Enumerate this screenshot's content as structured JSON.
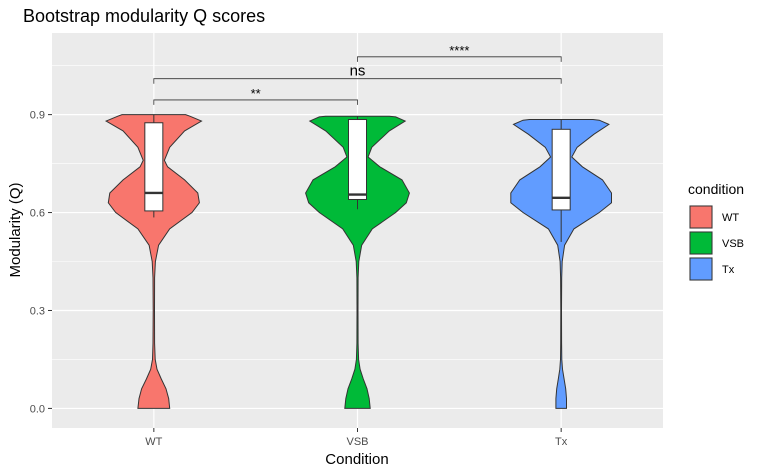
{
  "chart_data": {
    "type": "violin",
    "title": "Bootstrap modularity Q scores",
    "xlabel": "Condition",
    "ylabel": "Modularity (Q)",
    "categories": [
      "WT",
      "VSB",
      "Tx"
    ],
    "ylim": [
      -0.06,
      1.15
    ],
    "yticks": [
      0.0,
      0.3,
      0.6,
      0.9
    ],
    "ytick_labels": [
      "0.0",
      "0.3",
      "0.6",
      "0.9"
    ],
    "grid": true,
    "legend": {
      "title": "condition",
      "placement": "right",
      "entries": [
        {
          "label": "WT",
          "color": "#F8766D"
        },
        {
          "label": "VSB",
          "color": "#00BA38"
        },
        {
          "label": "Tx",
          "color": "#619CFF"
        }
      ]
    },
    "series": [
      {
        "category": "WT",
        "color": "#F8766D",
        "box": {
          "q1": 0.605,
          "median": 0.66,
          "q3": 0.875,
          "whisker_low": 0.585,
          "whisker_high": 0.9
        },
        "violin_profile": [
          [
            0.0,
            0.3
          ],
          [
            0.03,
            0.28
          ],
          [
            0.06,
            0.23
          ],
          [
            0.09,
            0.14
          ],
          [
            0.12,
            0.06
          ],
          [
            0.15,
            0.025
          ],
          [
            0.2,
            0.015
          ],
          [
            0.3,
            0.012
          ],
          [
            0.4,
            0.015
          ],
          [
            0.45,
            0.03
          ],
          [
            0.5,
            0.09
          ],
          [
            0.55,
            0.3
          ],
          [
            0.6,
            0.72
          ],
          [
            0.63,
            0.86
          ],
          [
            0.66,
            0.83
          ],
          [
            0.7,
            0.58
          ],
          [
            0.74,
            0.26
          ],
          [
            0.76,
            0.2
          ],
          [
            0.8,
            0.3
          ],
          [
            0.85,
            0.58
          ],
          [
            0.88,
            0.9
          ],
          [
            0.895,
            0.68
          ],
          [
            0.9,
            0.6
          ]
        ]
      },
      {
        "category": "VSB",
        "color": "#00BA38",
        "box": {
          "q1": 0.64,
          "median": 0.655,
          "q3": 0.885,
          "whisker_low": 0.61,
          "whisker_high": 0.895
        },
        "violin_profile": [
          [
            0.0,
            0.24
          ],
          [
            0.03,
            0.22
          ],
          [
            0.06,
            0.18
          ],
          [
            0.09,
            0.11
          ],
          [
            0.12,
            0.05
          ],
          [
            0.15,
            0.02
          ],
          [
            0.2,
            0.012
          ],
          [
            0.3,
            0.01
          ],
          [
            0.4,
            0.012
          ],
          [
            0.45,
            0.025
          ],
          [
            0.5,
            0.08
          ],
          [
            0.55,
            0.28
          ],
          [
            0.6,
            0.72
          ],
          [
            0.63,
            0.92
          ],
          [
            0.66,
            0.98
          ],
          [
            0.7,
            0.84
          ],
          [
            0.74,
            0.42
          ],
          [
            0.77,
            0.2
          ],
          [
            0.8,
            0.27
          ],
          [
            0.85,
            0.6
          ],
          [
            0.88,
            0.9
          ],
          [
            0.893,
            0.72
          ],
          [
            0.895,
            0.6
          ]
        ]
      },
      {
        "category": "Tx",
        "color": "#619CFF",
        "box": {
          "q1": 0.608,
          "median": 0.645,
          "q3": 0.855,
          "whisker_low": 0.51,
          "whisker_high": 0.885
        },
        "violin_profile": [
          [
            0.0,
            0.1
          ],
          [
            0.03,
            0.1
          ],
          [
            0.06,
            0.085
          ],
          [
            0.09,
            0.055
          ],
          [
            0.12,
            0.025
          ],
          [
            0.15,
            0.012
          ],
          [
            0.2,
            0.008
          ],
          [
            0.3,
            0.007
          ],
          [
            0.4,
            0.01
          ],
          [
            0.45,
            0.02
          ],
          [
            0.5,
            0.065
          ],
          [
            0.55,
            0.24
          ],
          [
            0.6,
            0.72
          ],
          [
            0.63,
            0.95
          ],
          [
            0.66,
            0.95
          ],
          [
            0.7,
            0.78
          ],
          [
            0.74,
            0.4
          ],
          [
            0.77,
            0.2
          ],
          [
            0.8,
            0.3
          ],
          [
            0.84,
            0.62
          ],
          [
            0.87,
            0.9
          ],
          [
            0.883,
            0.72
          ],
          [
            0.885,
            0.6
          ]
        ]
      }
    ],
    "significance": [
      {
        "from": "WT",
        "to": "VSB",
        "y": 0.945,
        "label": "**"
      },
      {
        "from": "WT",
        "to": "Tx",
        "y": 1.01,
        "label": "ns"
      },
      {
        "from": "VSB",
        "to": "Tx",
        "y": 1.077,
        "label": "****"
      }
    ]
  }
}
